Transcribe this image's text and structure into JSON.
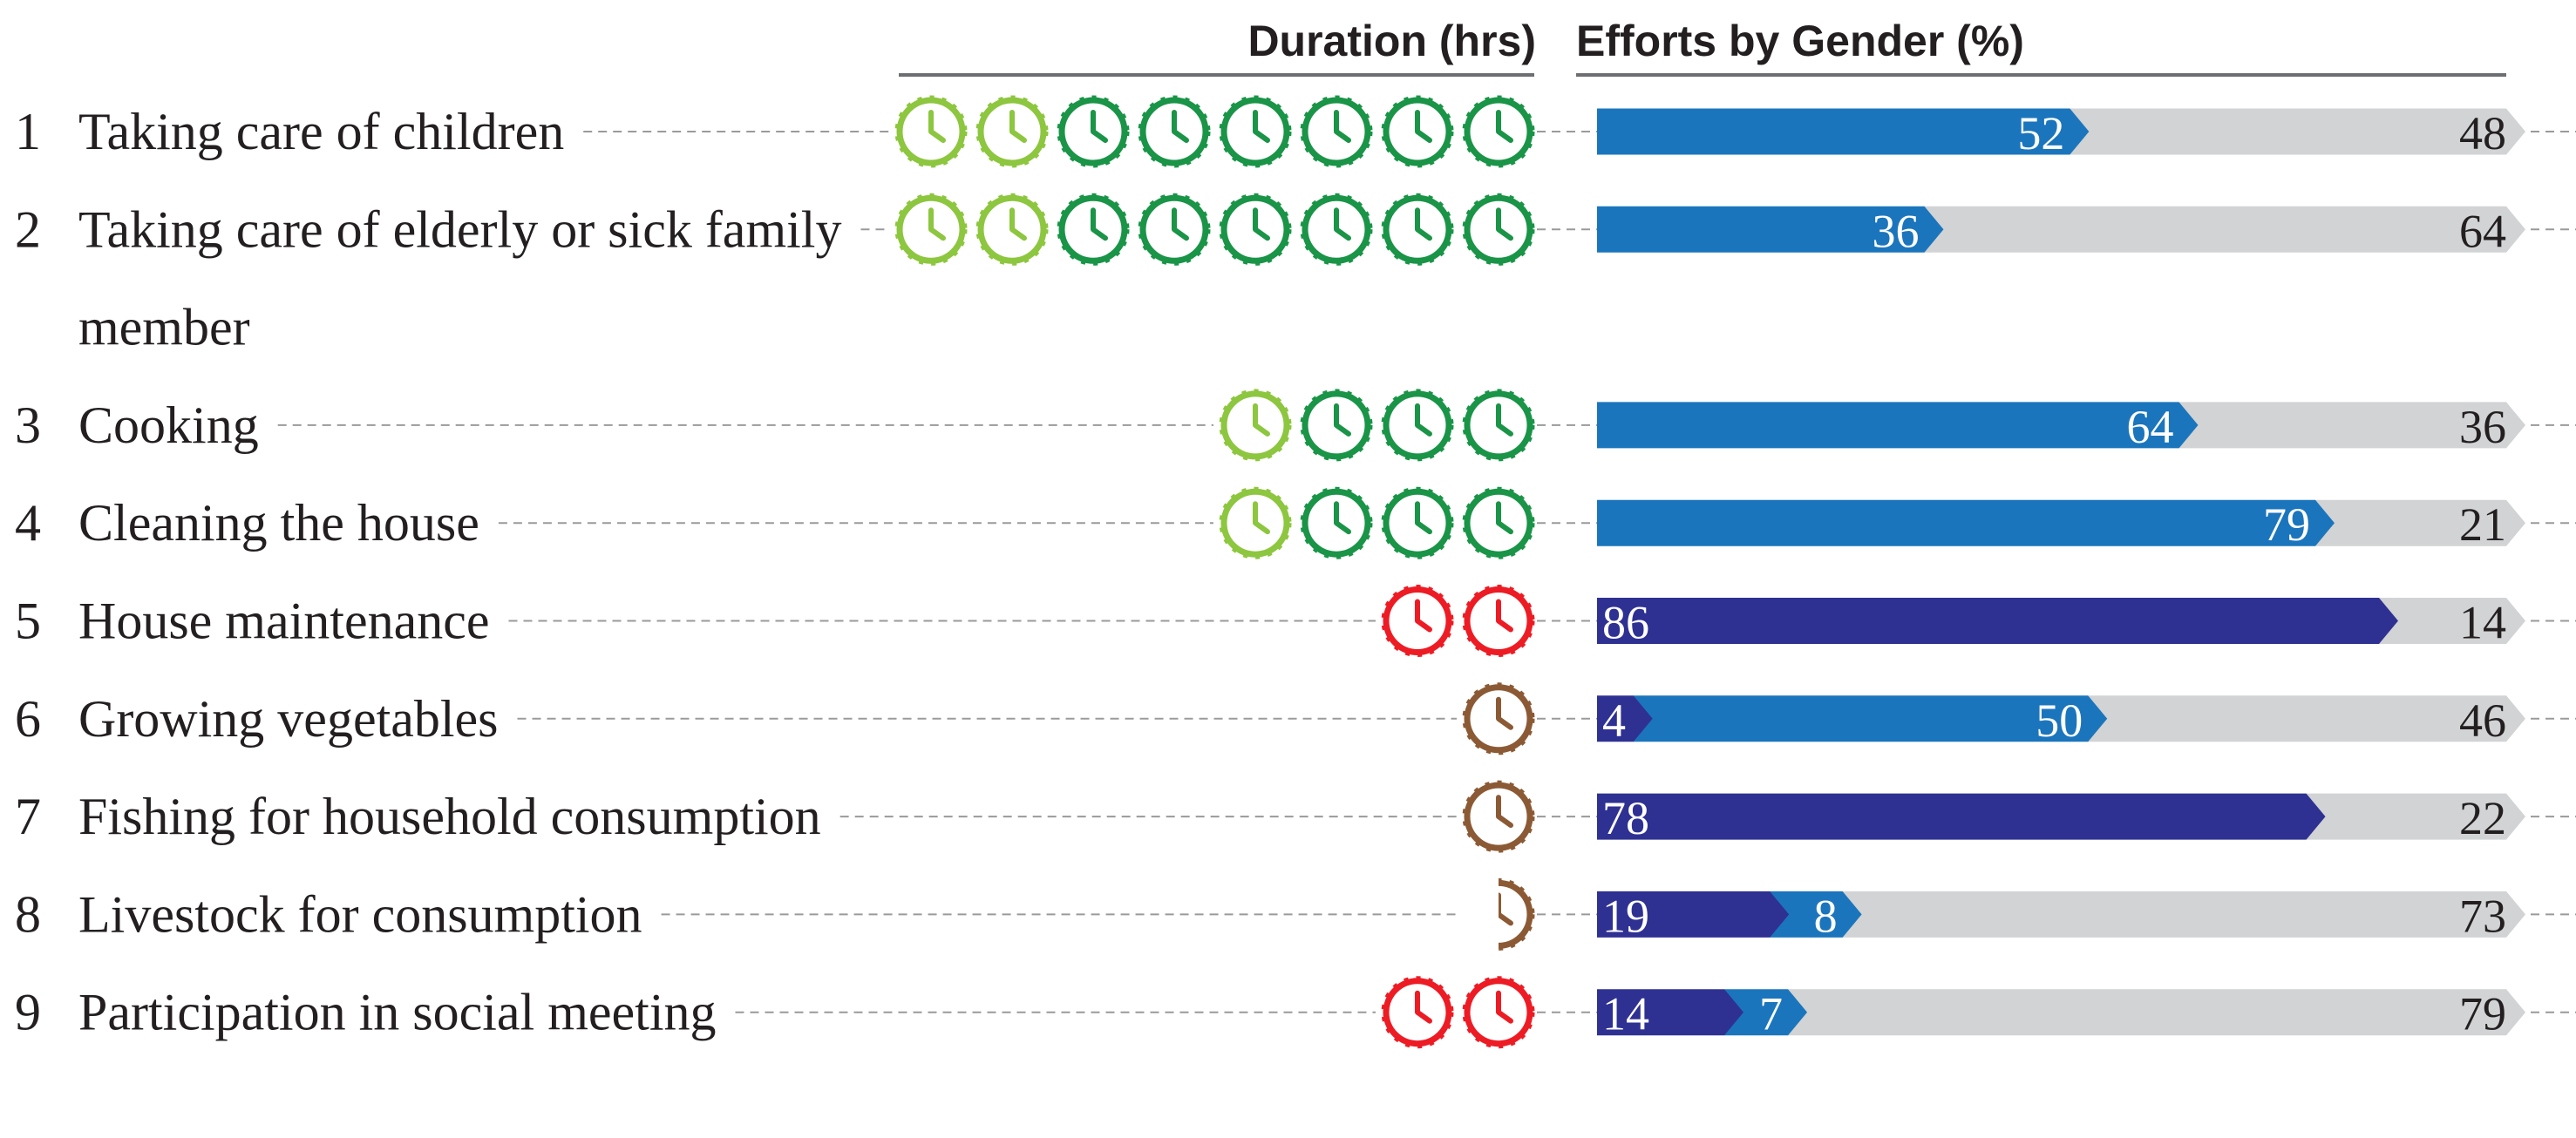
{
  "chart_data": {
    "type": "bar",
    "orientation": "horizontal",
    "stacked": true,
    "duration_label": "Duration (hrs)",
    "bar_label": "Efforts by Gender (%)",
    "ranks": [
      1,
      2,
      3,
      4,
      5,
      6,
      7,
      8,
      9
    ],
    "categories": [
      "Taking care of children",
      "Taking care of elderly or sick family member",
      "Cooking",
      "Cleaning the house",
      "House maintenance",
      "Growing vegetables",
      "Fishing for household consumption",
      "Livestock for consumption",
      "Participation in social meeting"
    ],
    "duration": [
      8,
      8,
      4,
      4,
      2,
      1,
      1,
      0.5,
      2
    ],
    "duration_colors": [
      "#1a9447",
      "#1a9447",
      "#1a9447",
      "#1a9447",
      "#ed1c24",
      "#8b5a35",
      "#8b5a35",
      "#8b5a35",
      "#ed1c24"
    ],
    "duration_light": [
      2,
      2,
      1,
      1,
      0,
      0,
      0,
      0,
      0
    ],
    "light_color": "#8dc63f",
    "xlim": [
      0,
      100
    ],
    "series": [
      {
        "color": "#2e3192",
        "label_color": "#ffffff",
        "values": [
          null,
          null,
          null,
          null,
          86,
          4,
          78,
          19,
          14
        ]
      },
      {
        "color": "#1b75bc",
        "label_color": "#ffffff",
        "values": [
          52,
          36,
          64,
          79,
          null,
          50,
          null,
          8,
          7
        ]
      },
      {
        "color": "#d1d3d4",
        "label_color": "#231f20",
        "values": [
          48,
          64,
          36,
          21,
          14,
          46,
          22,
          73,
          79
        ]
      }
    ]
  }
}
